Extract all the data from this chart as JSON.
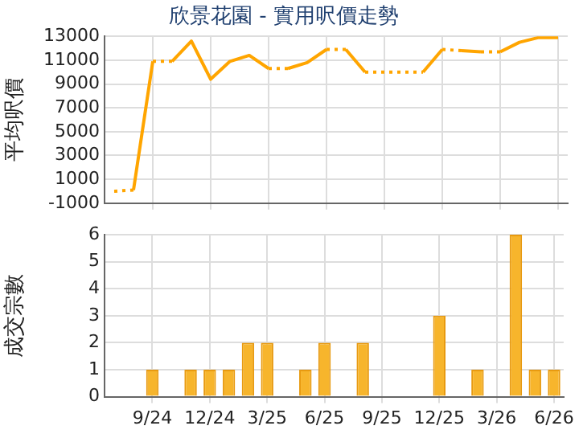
{
  "chart_data": [
    {
      "type": "line",
      "title": "欣景花園 - 實用呎價走勢",
      "ylabel": "平均呎價",
      "categories": [
        null,
        null,
        null,
        null,
        null,
        null,
        null,
        null,
        null,
        null,
        null,
        null,
        null,
        null,
        null,
        null,
        null,
        null,
        null,
        null,
        null,
        null,
        null,
        null
      ],
      "series": [
        {
          "color": "#ffa500",
          "values": [
            0,
            100,
            10900,
            10900,
            12600,
            9400,
            10900,
            11400,
            10300,
            10300,
            10800,
            11900,
            11900,
            10000,
            10000,
            10000,
            10000,
            11900,
            11800,
            11700,
            11700,
            12500,
            12900,
            12900
          ]
        }
      ],
      "ylim": [
        -1000,
        13000
      ],
      "yticks": [
        -1000,
        1000,
        3000,
        5000,
        7000,
        9000,
        11000,
        13000
      ],
      "grid": true,
      "marker": "none",
      "tick_labels": "y"
    },
    {
      "type": "bar",
      "ylabel": "成交宗數",
      "categories": [
        null,
        null,
        "9/24",
        null,
        null,
        "12/24",
        null,
        null,
        "3/25",
        null,
        null,
        "6/25",
        null,
        null,
        "9/25",
        null,
        null,
        "12/25",
        null,
        null,
        "3/26",
        null,
        null,
        "6/26"
      ],
      "values": [
        0,
        0,
        1,
        0,
        1,
        1,
        1,
        2,
        2,
        0,
        1,
        2,
        0,
        2,
        0,
        0,
        0,
        3,
        0,
        1,
        0,
        6,
        1,
        1
      ],
      "color": "#f7b52c",
      "ylim": [
        0,
        6
      ],
      "yticks": [
        0,
        1,
        2,
        3,
        4,
        5,
        6
      ],
      "grid": true
    }
  ]
}
